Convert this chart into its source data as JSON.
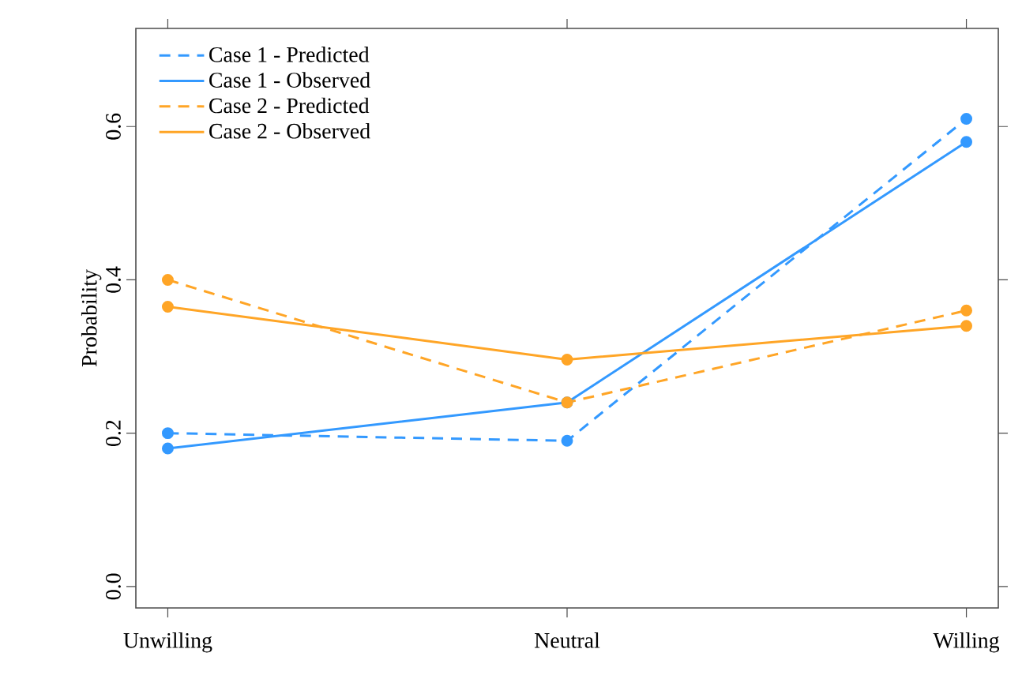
{
  "chart_data": {
    "type": "line",
    "ylabel": "Probability",
    "categories": [
      "Unwilling",
      "Neutral",
      "Willing"
    ],
    "series": [
      {
        "name": "Case 1 - Predicted",
        "color": "#3399ff",
        "line_style": "dashed",
        "values": [
          0.2,
          0.19,
          0.61
        ]
      },
      {
        "name": "Case 1 - Observed",
        "color": "#3399ff",
        "line_style": "solid",
        "values": [
          0.18,
          0.24,
          0.58
        ]
      },
      {
        "name": "Case 2 - Predicted",
        "color": "#ffa526",
        "line_style": "dashed",
        "values": [
          0.4,
          0.24,
          0.36
        ]
      },
      {
        "name": "Case 2 - Observed",
        "color": "#ffa526",
        "line_style": "solid",
        "values": [
          0.365,
          0.296,
          0.34
        ]
      }
    ],
    "ylim": [
      -0.028,
      0.728
    ],
    "yticks": [
      {
        "value": 0,
        "label": "0.0"
      },
      0.2,
      0.4,
      0.6
    ],
    "marker": "circle",
    "grid": false,
    "legend": "top left"
  }
}
